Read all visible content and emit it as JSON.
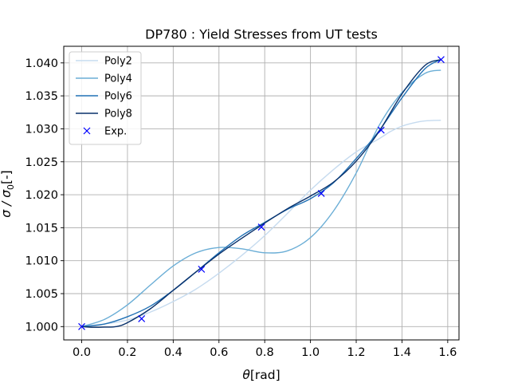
{
  "chart_data": {
    "type": "line",
    "title": "DP780 : Yield Stresses from UT tests",
    "xlabel_symbol": "θ",
    "xlabel_suffix": "[rad]",
    "ylabel_prefix": "σ / σ",
    "ylabel_sub": "0",
    "ylabel_suffix": "[-]",
    "xlim": [
      -0.0785,
      1.6493
    ],
    "ylim": [
      0.99798,
      1.04252
    ],
    "grid": true,
    "legend_position": "top-left",
    "x_ticks": [
      0.0,
      0.2,
      0.4,
      0.6,
      0.8,
      1.0,
      1.2,
      1.4,
      1.6
    ],
    "x_tick_labels": [
      "0.0",
      "0.2",
      "0.4",
      "0.6",
      "0.8",
      "1.0",
      "1.2",
      "1.4",
      "1.6"
    ],
    "y_ticks": [
      1.0,
      1.005,
      1.01,
      1.015,
      1.02,
      1.025,
      1.03,
      1.035,
      1.04
    ],
    "y_tick_labels": [
      "1.000",
      "1.005",
      "1.010",
      "1.015",
      "1.020",
      "1.025",
      "1.030",
      "1.035",
      "1.040"
    ],
    "series": [
      {
        "name": "Poly2",
        "color": "#c6dbef",
        "style": "line",
        "x": [
          0,
          0.1,
          0.2,
          0.3,
          0.4,
          0.5,
          0.6,
          0.7,
          0.8,
          0.9,
          1.0,
          1.1,
          1.2,
          1.3,
          1.35,
          1.4,
          1.45,
          1.5,
          1.57
        ],
        "y": [
          1.0,
          1.0004,
          1.001,
          1.0022,
          1.0038,
          1.0057,
          1.0081,
          1.0108,
          1.0138,
          1.0172,
          1.0207,
          1.0238,
          1.0265,
          1.0285,
          1.0296,
          1.0304,
          1.0309,
          1.0312,
          1.0313
        ]
      },
      {
        "name": "Poly4",
        "color": "#6baed6",
        "style": "line",
        "x": [
          0,
          0.1,
          0.2,
          0.3,
          0.4,
          0.5,
          0.6,
          0.7,
          0.8,
          0.9,
          1.0,
          1.1,
          1.2,
          1.3,
          1.4,
          1.5,
          1.57
        ],
        "y": [
          1.0,
          1.0011,
          1.0033,
          1.0063,
          1.0092,
          1.0112,
          1.012,
          1.0118,
          1.0112,
          1.0115,
          1.0135,
          1.0175,
          1.0233,
          1.0305,
          1.0355,
          1.0384,
          1.0389
        ]
      },
      {
        "name": "Poly6",
        "color": "#2171b5",
        "style": "line",
        "x": [
          0,
          0.1,
          0.2,
          0.3,
          0.4,
          0.5,
          0.6,
          0.7,
          0.8,
          0.9,
          1.0,
          1.1,
          1.2,
          1.3,
          1.4,
          1.5,
          1.57
        ],
        "y": [
          1.0,
          1.0004,
          1.0015,
          1.0031,
          1.0055,
          1.0083,
          1.0112,
          1.0138,
          1.0158,
          1.0178,
          1.0194,
          1.0218,
          1.0255,
          1.0297,
          1.0347,
          1.0391,
          1.0405
        ]
      },
      {
        "name": "Poly8",
        "color": "#08306b",
        "style": "line",
        "x": [
          0,
          0.05,
          0.1,
          0.15,
          0.2,
          0.3,
          0.4,
          0.5,
          0.6,
          0.7,
          0.8,
          0.9,
          1.0,
          1.1,
          1.2,
          1.3,
          1.4,
          1.5,
          1.57
        ],
        "y": [
          1.0,
          0.9999,
          0.99992,
          1.0,
          1.0006,
          1.0027,
          1.0055,
          1.0083,
          1.011,
          1.0134,
          1.0157,
          1.0179,
          1.0198,
          1.0219,
          1.0251,
          1.0296,
          1.0353,
          1.0396,
          1.0405
        ]
      },
      {
        "name": "Exp.",
        "color": "#0000ff",
        "style": "marker-x",
        "x": [
          0.0,
          0.2618,
          0.5236,
          0.7854,
          1.0472,
          1.309,
          1.5708
        ],
        "y": [
          1.0,
          1.0012,
          1.0087,
          1.0151,
          1.0202,
          1.0298,
          1.0405
        ]
      }
    ]
  }
}
